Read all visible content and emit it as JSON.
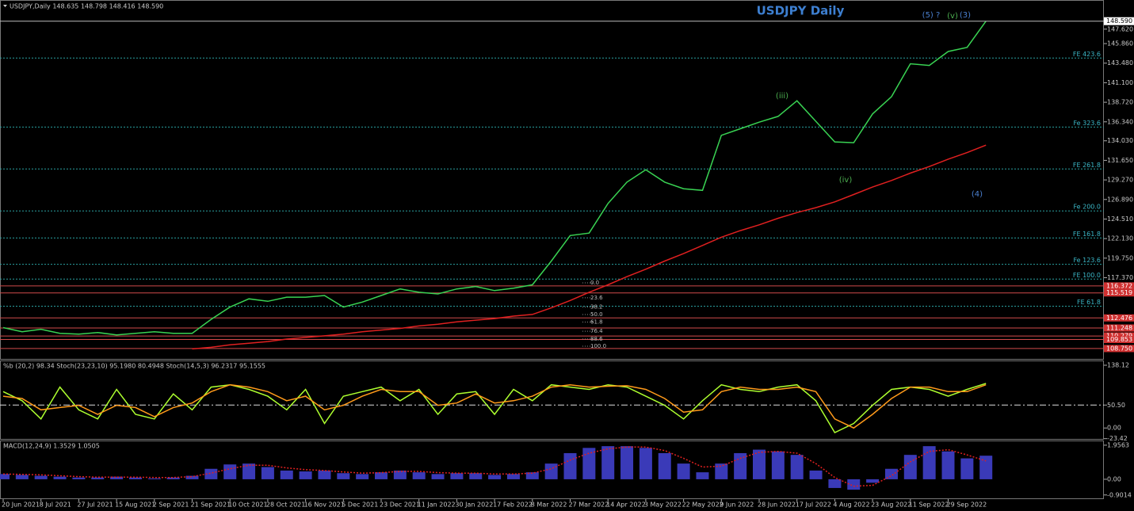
{
  "chart_data": [
    {
      "type": "line",
      "header": "USDJPY,Daily  148.635 148.798 148.416 148.590",
      "title": "USDJPY Daily",
      "categories": [
        "20 Jun 2021",
        null,
        "8 Jul 2021",
        null,
        "27 Jul 2021",
        null,
        "15 Aug 2021",
        null,
        "2 Sep 2021",
        null,
        "21 Sep 2021",
        null,
        "10 Oct 2021",
        null,
        "28 Oct 2021",
        null,
        "16 Nov 2021",
        null,
        "5 Dec 2021",
        null,
        "23 Dec 2021",
        null,
        "11 Jan 2022",
        null,
        "30 Jan 2022",
        null,
        "17 Feb 2022",
        null,
        "8 Mar 2022",
        null,
        "27 Mar 2022",
        null,
        "14 Apr 2022",
        null,
        "3 May 2022",
        null,
        "22 May 2022",
        null,
        "9 Jun 2022",
        null,
        "28 Jun 2022",
        null,
        "17 Jul 2022",
        null,
        "4 Aug 2022",
        null,
        "23 Aug 2022",
        null,
        "11 Sep 2022",
        null,
        "29 Sep 2022",
        null,
        null
      ],
      "series": [
        {
          "color": "#39d353",
          "values": [
            111.3,
            110.8,
            111.1,
            110.6,
            110.5,
            110.7,
            110.4,
            110.6,
            110.8,
            110.6,
            110.6,
            112.3,
            113.8,
            114.8,
            114.5,
            115.0,
            115.0,
            115.2,
            113.8,
            114.4,
            115.2,
            116.0,
            115.6,
            115.4,
            116.0,
            116.3,
            115.8,
            116.1,
            116.5,
            119.4,
            122.5,
            122.8,
            126.4,
            129.0,
            130.5,
            129.0,
            128.2,
            128.0,
            134.7,
            135.5,
            136.3,
            137.0,
            138.9,
            136.4,
            133.9,
            133.8,
            137.3,
            139.4,
            143.4,
            143.2,
            144.9,
            145.4,
            148.59
          ]
        },
        {
          "color": "#e02020",
          "values": [
            null,
            null,
            null,
            null,
            null,
            null,
            null,
            null,
            null,
            null,
            108.7,
            108.9,
            109.2,
            109.4,
            109.6,
            109.9,
            110.1,
            110.3,
            110.5,
            110.8,
            111.0,
            111.2,
            111.5,
            111.7,
            112.0,
            112.2,
            112.4,
            112.7,
            112.9,
            113.7,
            114.6,
            115.6,
            116.5,
            117.5,
            118.4,
            119.4,
            120.3,
            121.3,
            122.3,
            123.1,
            123.8,
            124.6,
            125.3,
            125.9,
            126.6,
            127.5,
            128.4,
            129.2,
            130.1,
            130.9,
            131.8,
            132.6,
            133.5
          ]
        }
      ],
      "ylim": [
        107.49,
        150.78
      ],
      "yticks": [
        {
          "value": 147.62,
          "label": "147.620"
        },
        {
          "value": 145.86,
          "label": "145.860"
        },
        {
          "value": 143.48,
          "label": "143.480"
        },
        {
          "value": 141.1,
          "label": "141.100"
        },
        {
          "value": 138.72,
          "label": "138.720"
        },
        {
          "value": 136.34,
          "label": "136.340"
        },
        {
          "value": 134.03,
          "label": "134.030"
        },
        {
          "value": 131.65,
          "label": "131.650"
        },
        {
          "value": 129.27,
          "label": "129.270"
        },
        {
          "value": 126.89,
          "label": "126.890"
        },
        {
          "value": 124.51,
          "label": "124.510"
        },
        {
          "value": 122.13,
          "label": "122.130"
        },
        {
          "value": 119.75,
          "label": "119.750"
        },
        {
          "value": 117.37,
          "label": "117.370"
        }
      ],
      "last": {
        "value": 148.59,
        "label": "148.590"
      },
      "fib_levels": [
        {
          "label": "FE 423.6",
          "value": 144.1
        },
        {
          "label": "Fe 323.6",
          "value": 135.7
        },
        {
          "label": "FE 261.8",
          "value": 130.6
        },
        {
          "label": "Fe 200.0",
          "value": 125.5
        },
        {
          "label": "FE 161.8",
          "value": 122.2
        },
        {
          "label": "Fe 123.6",
          "value": 119.0
        },
        {
          "label": "FE 100.0",
          "value": 117.2
        },
        {
          "label": "FE 61.8",
          "value": 113.9
        }
      ],
      "levels": [
        116.372,
        115.519,
        112.476,
        111.248,
        110.279,
        109.853,
        {
          "value": 108.75,
          "label": "108.750"
        }
      ],
      "retracement": [
        {
          "value": 0,
          "label": "0.0"
        },
        23.6,
        38.2,
        {
          "value": 50,
          "label": "50.0"
        },
        61.8,
        76.4,
        88.6,
        {
          "value": 100,
          "label": "100.0"
        }
      ],
      "waves": [
        "(5) ?",
        "(v)",
        "(3)",
        "(iii)",
        "(iv)",
        "(4)"
      ]
    },
    {
      "type": "line",
      "label": "%b (20,2) 98.34  Stoch(23,23,10) 95.1980 80.4948  Stoch(14,5,3) 96.2317 95.1555",
      "series": [
        {
          "color": "#adff2f",
          "values": [
            80,
            60,
            20,
            90,
            40,
            20,
            85,
            30,
            20,
            75,
            40,
            90,
            95,
            85,
            70,
            40,
            85,
            10,
            70,
            80,
            90,
            60,
            85,
            30,
            75,
            80,
            30,
            85,
            60,
            95,
            90,
            85,
            95,
            90,
            70,
            50,
            20,
            60,
            95,
            85,
            80,
            90,
            95,
            60,
            -10,
            10,
            50,
            85,
            90,
            85,
            70,
            85,
            98
          ]
        },
        {
          "color": "#ff9a1a",
          "values": [
            70,
            65,
            40,
            45,
            50,
            30,
            50,
            45,
            25,
            45,
            55,
            80,
            95,
            90,
            80,
            60,
            70,
            40,
            50,
            70,
            85,
            80,
            80,
            50,
            55,
            75,
            55,
            60,
            70,
            90,
            95,
            90,
            92,
            93,
            85,
            65,
            35,
            40,
            80,
            90,
            85,
            85,
            90,
            80,
            20,
            0,
            30,
            65,
            90,
            90,
            80,
            80,
            95
          ]
        }
      ],
      "ylim": [
        -24,
        148.6
      ],
      "yticks": [
        138.12,
        {
          "value": 50.5,
          "label": "50.50"
        },
        {
          "value": 0,
          "label": "0.00"
        },
        -23.42
      ],
      "midline": 50.5
    },
    {
      "type": "bar",
      "label": "MACD(12,24,9) 1.3529 1.0505",
      "series": [
        {
          "type": "bar",
          "color": "#3a3ab8",
          "values": [
            0.3,
            0.25,
            0.2,
            0.15,
            0.1,
            0.1,
            0.15,
            0.1,
            0.05,
            0.1,
            0.2,
            0.6,
            0.85,
            0.9,
            0.7,
            0.5,
            0.45,
            0.5,
            0.35,
            0.3,
            0.4,
            0.5,
            0.4,
            0.3,
            0.35,
            0.35,
            0.25,
            0.3,
            0.4,
            0.9,
            1.5,
            1.8,
            1.9,
            1.9,
            1.8,
            1.5,
            0.9,
            0.4,
            0.9,
            1.5,
            1.7,
            1.6,
            1.4,
            0.5,
            -0.5,
            -0.6,
            -0.2,
            0.6,
            1.4,
            1.9,
            1.6,
            1.2,
            1.3529
          ]
        },
        {
          "type": "line",
          "color": "#e02020",
          "values": [
            0.3,
            0.28,
            0.25,
            0.2,
            0.15,
            0.12,
            0.12,
            0.12,
            0.1,
            0.1,
            0.15,
            0.35,
            0.6,
            0.8,
            0.8,
            0.65,
            0.55,
            0.5,
            0.42,
            0.35,
            0.38,
            0.45,
            0.45,
            0.38,
            0.35,
            0.35,
            0.3,
            0.3,
            0.35,
            0.6,
            1.1,
            1.5,
            1.75,
            1.85,
            1.85,
            1.65,
            1.2,
            0.7,
            0.75,
            1.2,
            1.55,
            1.6,
            1.5,
            0.9,
            0.1,
            -0.4,
            -0.35,
            0.2,
            1.0,
            1.6,
            1.7,
            1.4,
            1.0505
          ]
        }
      ],
      "ylim": [
        -1.14,
        2.18
      ],
      "yticks": [
        1.9563,
        {
          "value": 0,
          "label": "0.00"
        },
        -0.9014
      ]
    }
  ]
}
